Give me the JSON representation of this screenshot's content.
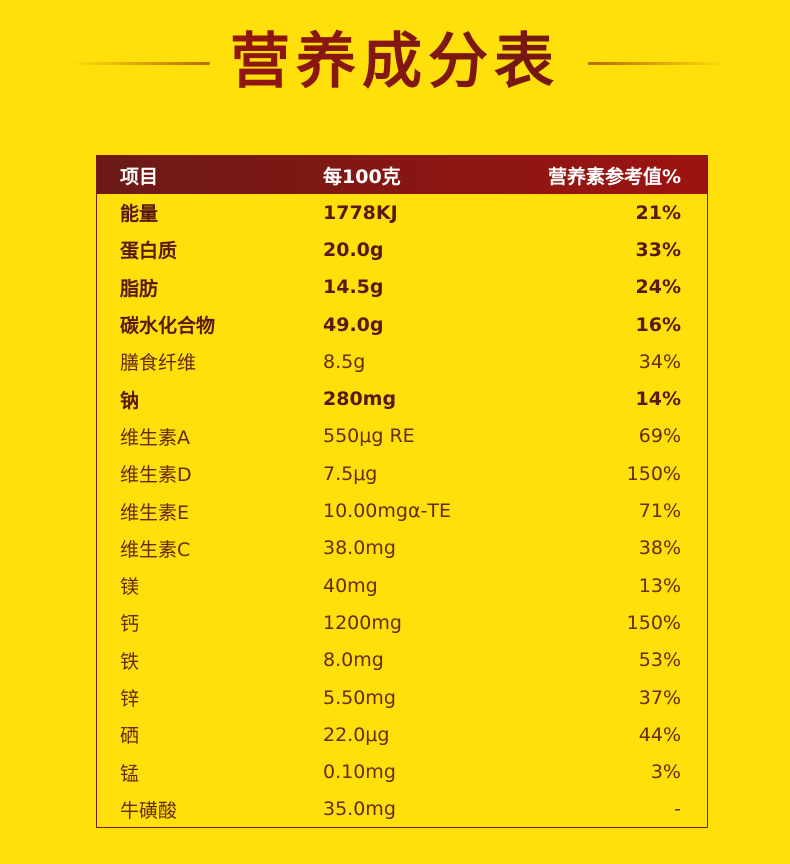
{
  "title": "营养成分表",
  "table": {
    "headers": [
      "项目",
      "每100克",
      "营养素参考值%"
    ],
    "rows": [
      {
        "item": "能量",
        "per100g": "1778KJ",
        "nrv": "21%",
        "bold": true
      },
      {
        "item": "蛋白质",
        "per100g": "20.0g",
        "nrv": "33%",
        "bold": true
      },
      {
        "item": "脂肪",
        "per100g": "14.5g",
        "nrv": "24%",
        "bold": true
      },
      {
        "item": "碳水化合物",
        "per100g": "49.0g",
        "nrv": "16%",
        "bold": true
      },
      {
        "item": "膳食纤维",
        "per100g": "8.5g",
        "nrv": "34%",
        "bold": false
      },
      {
        "item": "钠",
        "per100g": "280mg",
        "nrv": "14%",
        "bold": true
      },
      {
        "item": "维生素A",
        "per100g": "550μg RE",
        "nrv": "69%",
        "bold": false
      },
      {
        "item": "维生素D",
        "per100g": "7.5μg",
        "nrv": "150%",
        "bold": false
      },
      {
        "item": "维生素E",
        "per100g": "10.00mgα-TE",
        "nrv": "71%",
        "bold": false
      },
      {
        "item": "维生素C",
        "per100g": "38.0mg",
        "nrv": "38%",
        "bold": false
      },
      {
        "item": "镁",
        "per100g": "40mg",
        "nrv": "13%",
        "bold": false
      },
      {
        "item": "钙",
        "per100g": "1200mg",
        "nrv": "150%",
        "bold": false
      },
      {
        "item": "铁",
        "per100g": "8.0mg",
        "nrv": "53%",
        "bold": false
      },
      {
        "item": "锌",
        "per100g": "5.50mg",
        "nrv": "37%",
        "bold": false
      },
      {
        "item": "硒",
        "per100g": "22.0μg",
        "nrv": "44%",
        "bold": false
      },
      {
        "item": "锰",
        "per100g": "0.10mg",
        "nrv": "3%",
        "bold": false
      },
      {
        "item": "牛磺酸",
        "per100g": "35.0mg",
        "nrv": "-",
        "bold": false
      }
    ]
  },
  "colors": {
    "background": "#FFE00B",
    "header": "#8c1612",
    "text": "#5a1810"
  }
}
